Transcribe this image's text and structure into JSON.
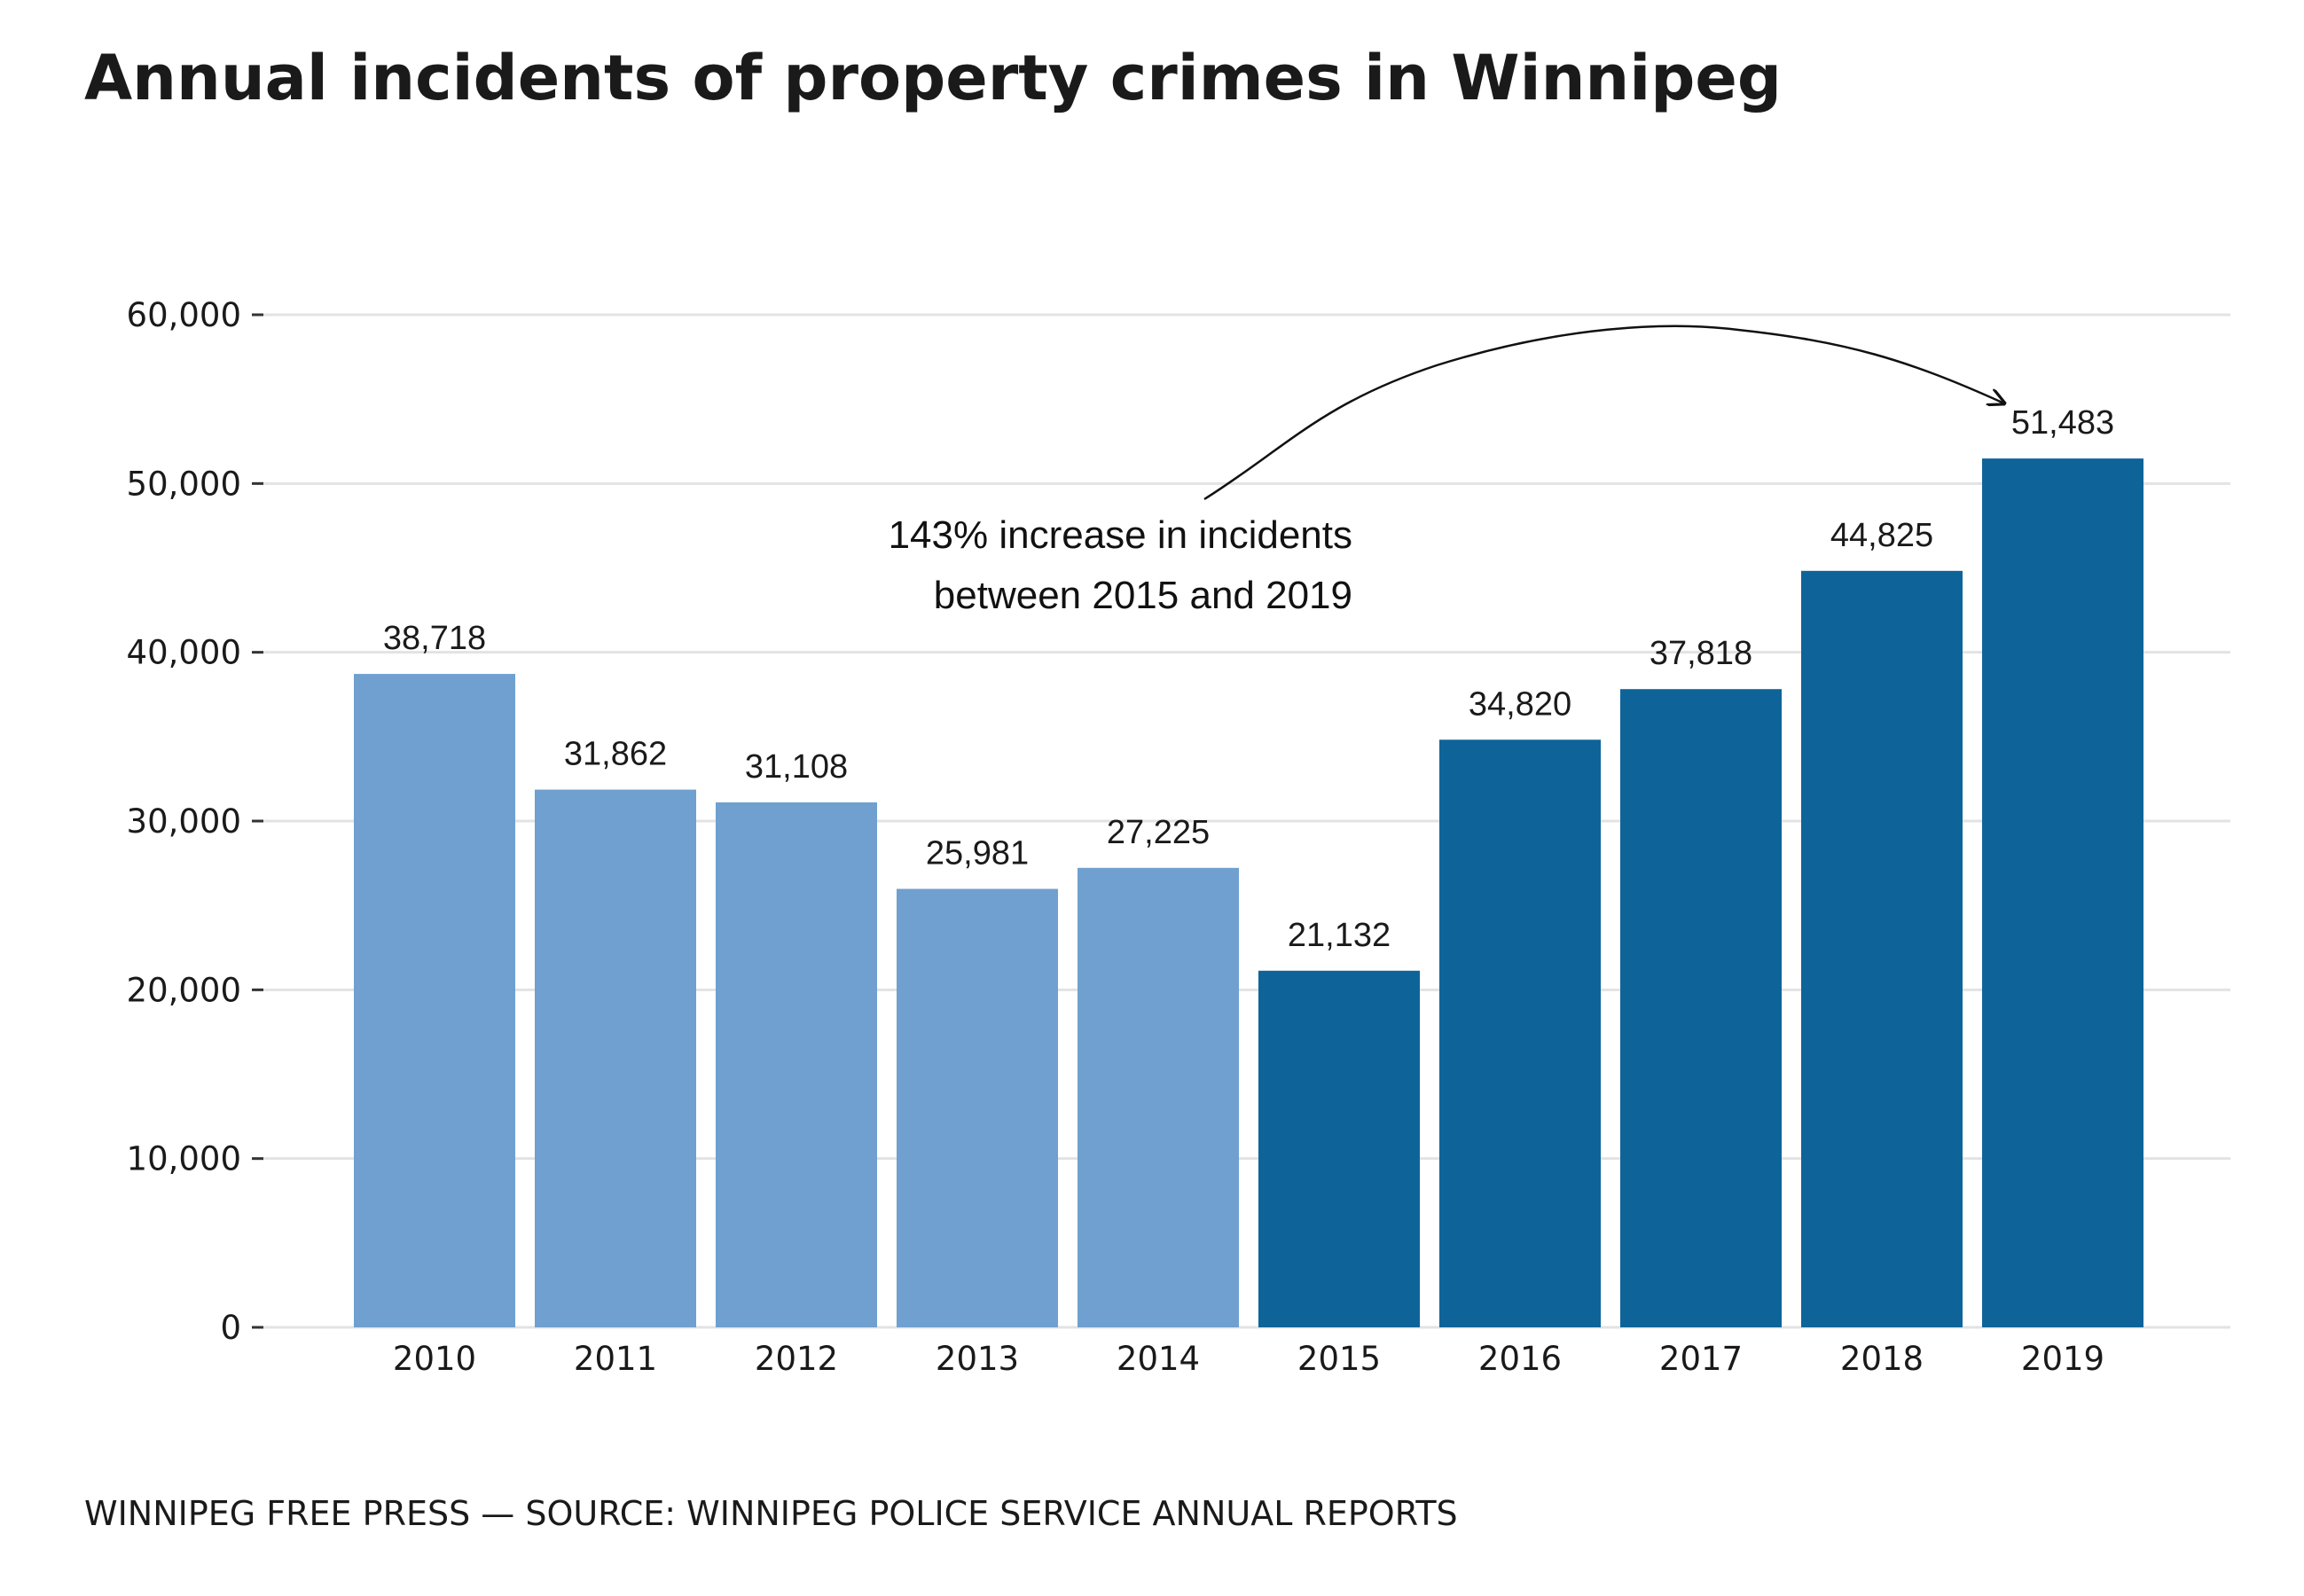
{
  "chart_data": {
    "type": "bar",
    "title": "Annual incidents of property crimes in Winnipeg",
    "xlabel": "",
    "ylabel": "",
    "categories": [
      "2010",
      "2011",
      "2012",
      "2013",
      "2014",
      "2015",
      "2016",
      "2017",
      "2018",
      "2019"
    ],
    "values": [
      38718,
      31862,
      31108,
      25981,
      27225,
      21132,
      34820,
      37818,
      44825,
      51483
    ],
    "value_labels": [
      "38,718",
      "31,862",
      "31,108",
      "25,981",
      "27,225",
      "21,132",
      "34,820",
      "37,818",
      "44,825",
      "51,483"
    ],
    "ylim": [
      0,
      60000
    ],
    "yticks": [
      0,
      10000,
      20000,
      30000,
      40000,
      50000,
      60000
    ],
    "ytick_labels": [
      "0",
      "10,000",
      "20,000",
      "30,000",
      "40,000",
      "50,000",
      "60,000"
    ],
    "grid": true,
    "colors": {
      "before_2015": "#6fa0cf",
      "from_2015": "#0e6499"
    },
    "highlight_from_category": "2015",
    "annotation": {
      "lines": [
        "143% increase in incidents",
        "between 2015 and 2019"
      ],
      "points_to": "2019"
    },
    "source": "WINNIPEG FREE PRESS — SOURCE: WINNIPEG POLICE SERVICE ANNUAL REPORTS"
  }
}
